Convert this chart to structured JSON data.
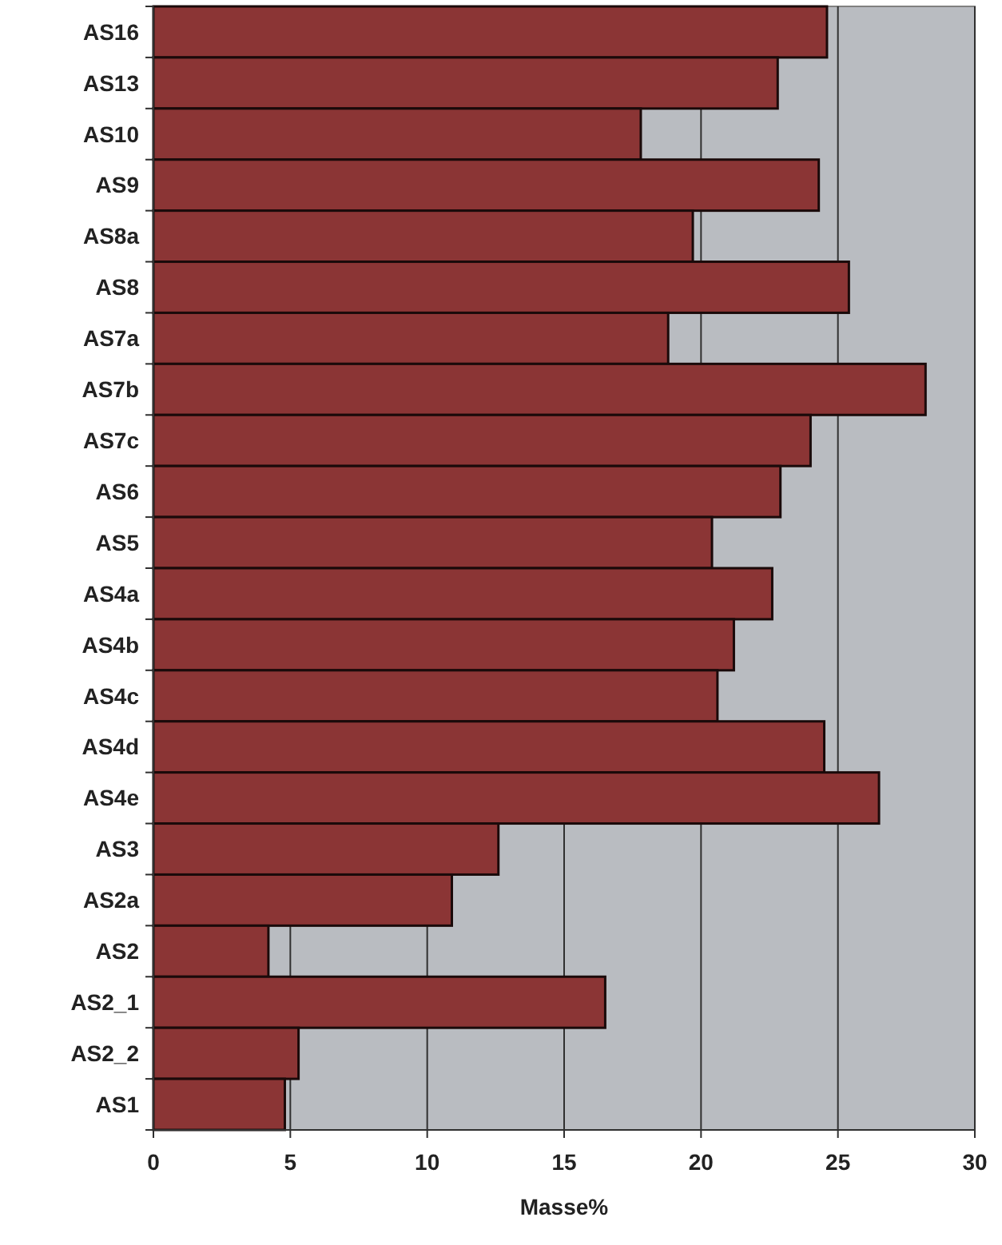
{
  "chart_data": {
    "type": "bar",
    "orientation": "horizontal",
    "xlabel": "Masse%",
    "categories": [
      "AS16",
      "AS13",
      "AS10",
      "AS9",
      "AS8a",
      "AS8",
      "AS7a",
      "AS7b",
      "AS7c",
      "AS6",
      "AS5",
      "AS4a",
      "AS4b",
      "AS4c",
      "AS4d",
      "AS4e",
      "AS3",
      "AS2a",
      "AS2",
      "AS2_1",
      "AS2_2",
      "AS1"
    ],
    "values": [
      24.6,
      22.8,
      17.8,
      24.3,
      19.7,
      25.4,
      18.8,
      28.2,
      24.0,
      22.9,
      20.4,
      22.6,
      21.2,
      20.6,
      24.5,
      26.5,
      12.6,
      10.9,
      4.2,
      16.5,
      5.3,
      4.8
    ],
    "color": "#8b3535",
    "xlim": [
      0,
      30
    ],
    "xticks": [
      0,
      5,
      10,
      15,
      20,
      25,
      30
    ],
    "grid": "x"
  }
}
